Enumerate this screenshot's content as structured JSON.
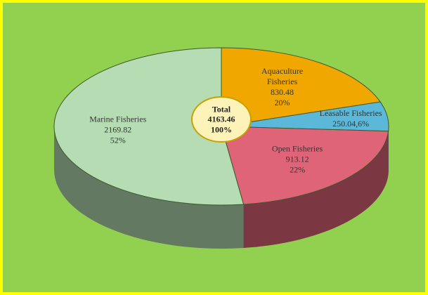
{
  "chart_data": {
    "type": "pie3d",
    "categories": [
      "Aquaculture Fisheries",
      "Leasable Fisheries",
      "Open Fisheries",
      "Marine Fisheries"
    ],
    "values": [
      830.48,
      250.04,
      913.12,
      2169.82
    ],
    "value_labels": [
      "830.48\n20%",
      "250.04,6%",
      "913.12\n22%",
      "2169.82\n52%"
    ],
    "colors": [
      "#f0a800",
      "#5bb8d8",
      "#e06478",
      "#b5dcb2"
    ],
    "total_label": "Total",
    "total": 4163.46,
    "total_percent": "100%"
  }
}
